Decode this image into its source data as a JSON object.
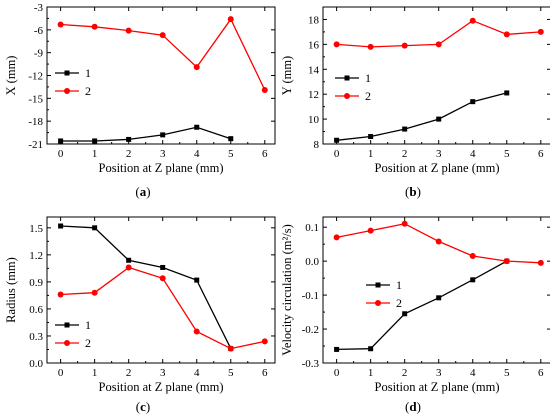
{
  "chart_data": [
    {
      "id": "a",
      "type": "line",
      "panel_label": "a",
      "xlabel": "Position at Z plane (mm)",
      "ylabel": "X (mm)",
      "xlim": [
        -0.4,
        6.3
      ],
      "ylim": [
        -21,
        -3
      ],
      "xticks": [
        0,
        1,
        2,
        3,
        4,
        5,
        6
      ],
      "yticks": [
        -21,
        -18,
        -15,
        -12,
        -9,
        -6,
        -3
      ],
      "ytick_labels": [
        "-21",
        "-18",
        "-15",
        "-12",
        "-9",
        "-6",
        "-3"
      ],
      "legend_position": "middle-left",
      "grid": false,
      "series": [
        {
          "name": "1",
          "color": "#000000",
          "marker": "square",
          "x": [
            0,
            1,
            2,
            3,
            4,
            5
          ],
          "y": [
            -20.6,
            -20.6,
            -20.4,
            -19.8,
            -18.8,
            -20.3
          ]
        },
        {
          "name": "2",
          "color": "#ff0000",
          "marker": "circle",
          "x": [
            0,
            1,
            2,
            3,
            4,
            5,
            6
          ],
          "y": [
            -5.3,
            -5.6,
            -6.1,
            -6.7,
            -10.9,
            -4.6,
            -13.9
          ]
        }
      ]
    },
    {
      "id": "b",
      "type": "line",
      "panel_label": "b",
      "xlabel": "Position at Z plane (mm)",
      "ylabel": "Y (mm)",
      "xlim": [
        -0.4,
        6.3
      ],
      "ylim": [
        8,
        19
      ],
      "xticks": [
        0,
        1,
        2,
        3,
        4,
        5,
        6
      ],
      "yticks": [
        8,
        10,
        12,
        14,
        16,
        18
      ],
      "ytick_labels": [
        "8",
        "10",
        "12",
        "14",
        "16",
        "18"
      ],
      "legend_position": "middle-left",
      "grid": false,
      "series": [
        {
          "name": "1",
          "color": "#000000",
          "marker": "square",
          "x": [
            0,
            1,
            2,
            3,
            4,
            5
          ],
          "y": [
            8.3,
            8.6,
            9.2,
            10.0,
            11.4,
            12.1
          ]
        },
        {
          "name": "2",
          "color": "#ff0000",
          "marker": "circle",
          "x": [
            0,
            1,
            2,
            3,
            4,
            5,
            6
          ],
          "y": [
            16.0,
            15.8,
            15.9,
            16.0,
            17.9,
            16.8,
            17.0
          ]
        }
      ]
    },
    {
      "id": "c",
      "type": "line",
      "panel_label": "c",
      "xlabel": "Position at Z plane (mm)",
      "ylabel": "Radius (mm)",
      "xlim": [
        -0.4,
        6.3
      ],
      "ylim": [
        0.0,
        1.62
      ],
      "xticks": [
        0,
        1,
        2,
        3,
        4,
        5,
        6
      ],
      "yticks": [
        0.0,
        0.3,
        0.6,
        0.9,
        1.2,
        1.5
      ],
      "ytick_labels": [
        "0.0",
        "0.3",
        "0.6",
        "0.9",
        "1.2",
        "1.5"
      ],
      "legend_position": "bottom-left",
      "grid": false,
      "series": [
        {
          "name": "1",
          "color": "#000000",
          "marker": "square",
          "x": [
            0,
            1,
            2,
            3,
            4,
            5
          ],
          "y": [
            1.52,
            1.5,
            1.14,
            1.06,
            0.92,
            0.16
          ]
        },
        {
          "name": "2",
          "color": "#ff0000",
          "marker": "circle",
          "x": [
            0,
            1,
            2,
            3,
            4,
            5,
            6
          ],
          "y": [
            0.76,
            0.78,
            1.06,
            0.94,
            0.35,
            0.16,
            0.24
          ]
        }
      ]
    },
    {
      "id": "d",
      "type": "line",
      "panel_label": "d",
      "xlabel": "Position at Z plane (mm)",
      "ylabel": "Velocity circulation (m²/s)",
      "xlim": [
        -0.4,
        6.3
      ],
      "ylim": [
        -0.3,
        0.13
      ],
      "xticks": [
        0,
        1,
        2,
        3,
        4,
        5,
        6
      ],
      "yticks": [
        -0.3,
        -0.2,
        -0.1,
        0.0,
        0.1
      ],
      "ytick_labels": [
        "-0.3",
        "-0.2",
        "-0.1",
        "0.0",
        "0.1"
      ],
      "legend_position": "middle-left",
      "grid": false,
      "series": [
        {
          "name": "1",
          "color": "#000000",
          "marker": "square",
          "x": [
            0,
            1,
            2,
            3,
            4,
            5
          ],
          "y": [
            -0.26,
            -0.258,
            -0.155,
            -0.108,
            -0.055,
            0.0
          ]
        },
        {
          "name": "2",
          "color": "#ff0000",
          "marker": "circle",
          "x": [
            0,
            1,
            2,
            3,
            4,
            5,
            6
          ],
          "y": [
            0.07,
            0.09,
            0.11,
            0.058,
            0.015,
            0.0,
            -0.005
          ]
        }
      ]
    }
  ]
}
